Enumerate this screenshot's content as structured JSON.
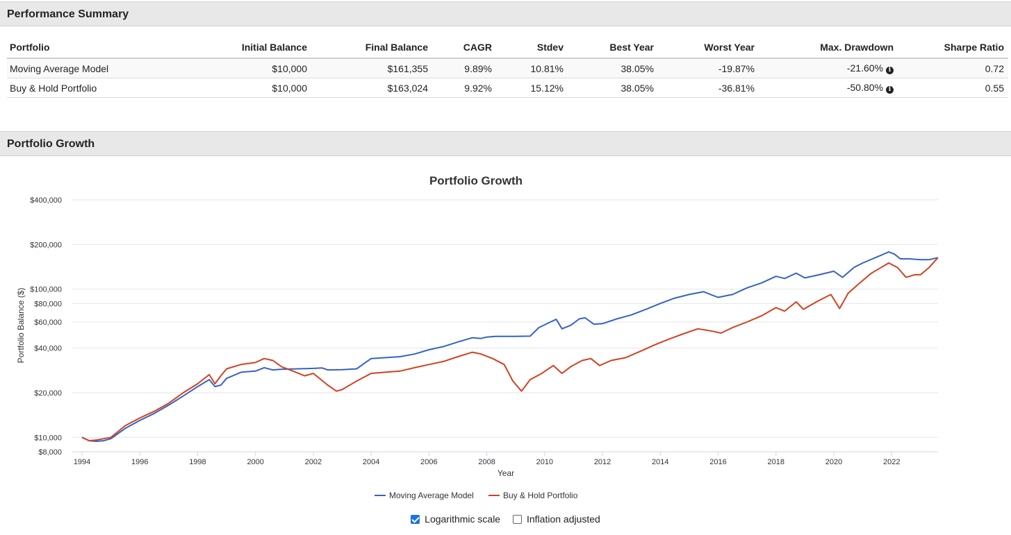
{
  "performance_summary": {
    "heading": "Performance Summary",
    "columns": [
      "Portfolio",
      "Initial Balance",
      "Final Balance",
      "CAGR",
      "Stdev",
      "Best Year",
      "Worst Year",
      "Max. Drawdown",
      "Sharpe Ratio"
    ],
    "rows": [
      {
        "portfolio": "Moving Average Model",
        "initial": "$10,000",
        "final": "$161,355",
        "cagr": "9.89%",
        "stdev": "10.81%",
        "best": "38.05%",
        "worst": "-19.87%",
        "drawdown": "-21.60%",
        "sharpe": "0.72"
      },
      {
        "portfolio": "Buy & Hold Portfolio",
        "initial": "$10,000",
        "final": "$163,024",
        "cagr": "9.92%",
        "stdev": "15.12%",
        "best": "38.05%",
        "worst": "-36.81%",
        "drawdown": "-50.80%",
        "sharpe": "0.55"
      }
    ]
  },
  "growth_section": {
    "heading": "Portfolio Growth"
  },
  "chart_data": {
    "type": "line",
    "title": "Portfolio Growth",
    "xlabel": "Year",
    "ylabel": "Portfolio Balance ($)",
    "y_scale": "log",
    "ylim": [
      8000,
      400000
    ],
    "xlim": [
      1994,
      2023.6
    ],
    "x_ticks": [
      1994,
      1996,
      1998,
      2000,
      2002,
      2004,
      2006,
      2008,
      2010,
      2012,
      2014,
      2016,
      2018,
      2020,
      2022
    ],
    "y_ticks": [
      {
        "value": 8000,
        "label": "$8,000"
      },
      {
        "value": 10000,
        "label": "$10,000"
      },
      {
        "value": 20000,
        "label": "$20,000"
      },
      {
        "value": 40000,
        "label": "$40,000"
      },
      {
        "value": 60000,
        "label": "$60,000"
      },
      {
        "value": 80000,
        "label": "$80,000"
      },
      {
        "value": 100000,
        "label": "$100,000"
      },
      {
        "value": 200000,
        "label": "$200,000"
      },
      {
        "value": 400000,
        "label": "$400,000"
      }
    ],
    "legend_position": "bottom-center",
    "series": [
      {
        "name": "Moving Average Model",
        "color": "#3461c9",
        "points": [
          [
            1994.0,
            10000
          ],
          [
            1994.25,
            9500
          ],
          [
            1994.5,
            9400
          ],
          [
            1994.75,
            9500
          ],
          [
            1995.0,
            9800
          ],
          [
            1995.5,
            11500
          ],
          [
            1996.0,
            13000
          ],
          [
            1996.5,
            14500
          ],
          [
            1997.0,
            16500
          ],
          [
            1997.5,
            19000
          ],
          [
            1998.0,
            22000
          ],
          [
            1998.4,
            24500
          ],
          [
            1998.6,
            22000
          ],
          [
            1998.8,
            22500
          ],
          [
            1999.0,
            25000
          ],
          [
            1999.5,
            27500
          ],
          [
            2000.0,
            28000
          ],
          [
            2000.3,
            29500
          ],
          [
            2000.6,
            28500
          ],
          [
            2000.9,
            28800
          ],
          [
            2001.5,
            29000
          ],
          [
            2002.0,
            29200
          ],
          [
            2002.3,
            29400
          ],
          [
            2002.5,
            28500
          ],
          [
            2003.0,
            28600
          ],
          [
            2003.5,
            29000
          ],
          [
            2004.0,
            34000
          ],
          [
            2004.5,
            34500
          ],
          [
            2005.0,
            35000
          ],
          [
            2005.5,
            36500
          ],
          [
            2006.0,
            39000
          ],
          [
            2006.5,
            41000
          ],
          [
            2007.0,
            44000
          ],
          [
            2007.5,
            47000
          ],
          [
            2007.8,
            46500
          ],
          [
            2008.0,
            47500
          ],
          [
            2008.3,
            48000
          ],
          [
            2009.0,
            48000
          ],
          [
            2009.5,
            48200
          ],
          [
            2009.8,
            55000
          ],
          [
            2010.2,
            60000
          ],
          [
            2010.4,
            62500
          ],
          [
            2010.6,
            54000
          ],
          [
            2010.9,
            57000
          ],
          [
            2011.2,
            63000
          ],
          [
            2011.4,
            64000
          ],
          [
            2011.7,
            58000
          ],
          [
            2012.0,
            58500
          ],
          [
            2012.5,
            63000
          ],
          [
            2013.0,
            67000
          ],
          [
            2013.5,
            73000
          ],
          [
            2014.0,
            80000
          ],
          [
            2014.5,
            87000
          ],
          [
            2015.0,
            92000
          ],
          [
            2015.5,
            96000
          ],
          [
            2015.8,
            91000
          ],
          [
            2016.0,
            88000
          ],
          [
            2016.5,
            92000
          ],
          [
            2017.0,
            102000
          ],
          [
            2017.5,
            110000
          ],
          [
            2018.0,
            122000
          ],
          [
            2018.3,
            118000
          ],
          [
            2018.7,
            128000
          ],
          [
            2019.0,
            119000
          ],
          [
            2019.5,
            125000
          ],
          [
            2020.0,
            132000
          ],
          [
            2020.3,
            120000
          ],
          [
            2020.7,
            140000
          ],
          [
            2021.0,
            150000
          ],
          [
            2021.5,
            165000
          ],
          [
            2021.9,
            178000
          ],
          [
            2022.1,
            172000
          ],
          [
            2022.3,
            160000
          ],
          [
            2022.6,
            160000
          ],
          [
            2023.0,
            158000
          ],
          [
            2023.3,
            158000
          ],
          [
            2023.6,
            163000
          ]
        ]
      },
      {
        "name": "Buy & Hold Portfolio",
        "color": "#d3401f",
        "points": [
          [
            1994.0,
            10000
          ],
          [
            1994.25,
            9500
          ],
          [
            1994.5,
            9600
          ],
          [
            1994.75,
            9800
          ],
          [
            1995.0,
            10000
          ],
          [
            1995.5,
            12000
          ],
          [
            1996.0,
            13500
          ],
          [
            1996.5,
            15000
          ],
          [
            1997.0,
            17000
          ],
          [
            1997.5,
            20000
          ],
          [
            1998.0,
            23000
          ],
          [
            1998.4,
            26500
          ],
          [
            1998.6,
            23000
          ],
          [
            1998.8,
            26000
          ],
          [
            1999.0,
            29000
          ],
          [
            1999.5,
            31000
          ],
          [
            2000.0,
            32000
          ],
          [
            2000.3,
            34000
          ],
          [
            2000.6,
            33000
          ],
          [
            2000.9,
            30000
          ],
          [
            2001.3,
            28000
          ],
          [
            2001.7,
            26000
          ],
          [
            2002.0,
            27000
          ],
          [
            2002.5,
            22500
          ],
          [
            2002.8,
            20500
          ],
          [
            2003.0,
            21000
          ],
          [
            2003.5,
            24000
          ],
          [
            2004.0,
            27000
          ],
          [
            2004.5,
            27500
          ],
          [
            2005.0,
            28000
          ],
          [
            2005.5,
            29500
          ],
          [
            2006.0,
            31000
          ],
          [
            2006.5,
            32500
          ],
          [
            2007.0,
            35000
          ],
          [
            2007.5,
            37500
          ],
          [
            2007.8,
            36500
          ],
          [
            2008.2,
            34000
          ],
          [
            2008.6,
            31000
          ],
          [
            2008.9,
            24000
          ],
          [
            2009.2,
            20500
          ],
          [
            2009.5,
            24500
          ],
          [
            2009.9,
            27000
          ],
          [
            2010.3,
            30500
          ],
          [
            2010.6,
            27000
          ],
          [
            2010.9,
            30000
          ],
          [
            2011.3,
            33000
          ],
          [
            2011.6,
            34000
          ],
          [
            2011.9,
            30500
          ],
          [
            2012.3,
            33000
          ],
          [
            2012.8,
            34500
          ],
          [
            2013.3,
            38000
          ],
          [
            2013.8,
            42000
          ],
          [
            2014.3,
            46000
          ],
          [
            2014.8,
            50000
          ],
          [
            2015.3,
            54000
          ],
          [
            2015.8,
            52000
          ],
          [
            2016.1,
            50500
          ],
          [
            2016.5,
            55000
          ],
          [
            2017.0,
            60000
          ],
          [
            2017.5,
            66000
          ],
          [
            2018.0,
            75000
          ],
          [
            2018.3,
            71000
          ],
          [
            2018.7,
            82000
          ],
          [
            2018.95,
            73000
          ],
          [
            2019.4,
            82000
          ],
          [
            2019.9,
            92000
          ],
          [
            2020.2,
            74000
          ],
          [
            2020.5,
            94000
          ],
          [
            2020.9,
            110000
          ],
          [
            2021.3,
            128000
          ],
          [
            2021.9,
            150000
          ],
          [
            2022.2,
            140000
          ],
          [
            2022.5,
            120000
          ],
          [
            2022.8,
            125000
          ],
          [
            2023.0,
            125000
          ],
          [
            2023.3,
            140000
          ],
          [
            2023.6,
            163000
          ]
        ]
      }
    ]
  },
  "controls": {
    "log_scale": {
      "label": "Logarithmic scale",
      "checked": true
    },
    "inflation": {
      "label": "Inflation adjusted",
      "checked": false
    }
  }
}
